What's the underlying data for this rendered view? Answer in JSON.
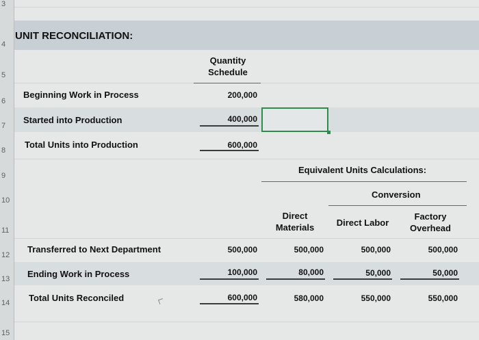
{
  "row_numbers": [
    "3",
    "4",
    "5",
    "6",
    "7",
    "8",
    "9",
    "10",
    "11",
    "12",
    "13",
    "14",
    "15"
  ],
  "section_title": "UNIT RECONCILIATION:",
  "quantity_header": [
    "Quantity",
    "Schedule"
  ],
  "top_rows": [
    {
      "label": "Beginning Work in Process",
      "value": "200,000"
    },
    {
      "label": "Started into Production",
      "value": "400,000"
    },
    {
      "label": "Total Units into Production",
      "value": "600,000"
    }
  ],
  "equiv_header": "Equivalent Units Calculations:",
  "conversion_header": "Conversion",
  "columns": {
    "direct_materials": [
      "Direct",
      "Materials"
    ],
    "direct_labor": "Direct Labor",
    "factory_overhead": [
      "Factory",
      "Overhead"
    ]
  },
  "bottom_rows": [
    {
      "label": "Transferred to Next Department",
      "qty": "500,000",
      "dm": "500,000",
      "dl": "500,000",
      "foh": "500,000"
    },
    {
      "label": "Ending Work in Process",
      "qty": "100,000",
      "dm": "80,000",
      "dl": "50,000",
      "foh": "50,000"
    },
    {
      "label": "Total Units Reconciled",
      "qty": "600,000",
      "dm": "580,000",
      "dl": "550,000",
      "foh": "550,000"
    }
  ],
  "colors": {
    "selection": "#2f8b4b",
    "band": "#d8dde0",
    "title_band": "#c9d0d5"
  }
}
